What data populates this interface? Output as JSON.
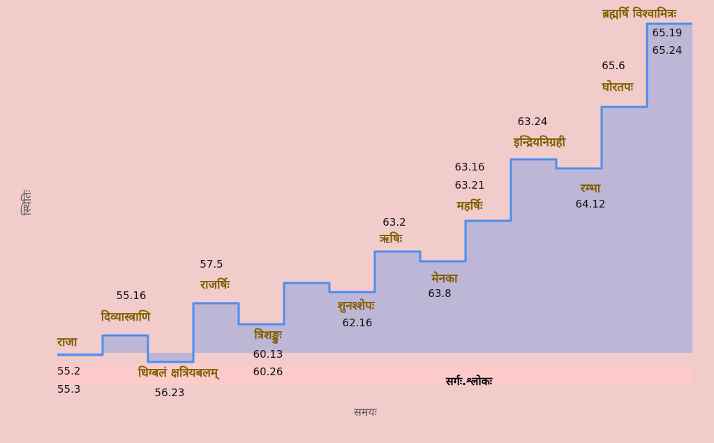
{
  "chart_data": {
    "type": "step",
    "xlabel": "समयः",
    "ylabel": "स्थितिः",
    "band_label": "सर्गः.श्लोकः",
    "ylim": [
      0,
      48.6
    ],
    "baseline": 1.5,
    "grid": false,
    "legend": "none",
    "colors": {
      "line": "#4a8ef0",
      "fill": "#bdb6d6",
      "label": "#7f6000",
      "background": "#f2cbcb",
      "band": "#fccaca"
    },
    "steps": [
      {
        "label": "राजा",
        "refs": [
          "55.2",
          "55.3"
        ],
        "level": 1.2
      },
      {
        "label": "दिव्यास्त्राणि",
        "refs": [
          "55.16"
        ],
        "level": 4.0
      },
      {
        "label": "धिग्बलं क्षत्रियबलम्",
        "refs": [
          "56.23"
        ],
        "level": 0.2
      },
      {
        "label": "राजर्षिः",
        "refs": [
          "57.5"
        ],
        "level": 8.6
      },
      {
        "label": "त्रिशङ्कुः",
        "refs": [
          "60.13",
          "60.26"
        ],
        "level": 5.6
      },
      {
        "label": "",
        "refs": [],
        "level": 11.5
      },
      {
        "label": "शुनश्शेपः",
        "refs": [
          "62.16"
        ],
        "level": 10.2
      },
      {
        "label": "ऋषिः",
        "refs": [
          "63.2"
        ],
        "level": 16.0
      },
      {
        "label": "मेनका",
        "refs": [
          "63.8"
        ],
        "level": 14.6
      },
      {
        "label": "महर्षिः",
        "refs": [
          "63.16",
          "63.21"
        ],
        "level": 20.4
      },
      {
        "label": "इन्द्रियनिग्रही",
        "refs": [
          "63.24"
        ],
        "level": 29.2
      },
      {
        "label": "रम्भा",
        "refs": [
          "64.12"
        ],
        "level": 27.9
      },
      {
        "label": "घोरतपः",
        "refs": [
          "65.6"
        ],
        "level": 36.7
      },
      {
        "label": "ब्रह्मर्षि विश्वामित्रः",
        "refs": [
          "65.19",
          "65.24"
        ],
        "level": 48.6
      }
    ]
  }
}
